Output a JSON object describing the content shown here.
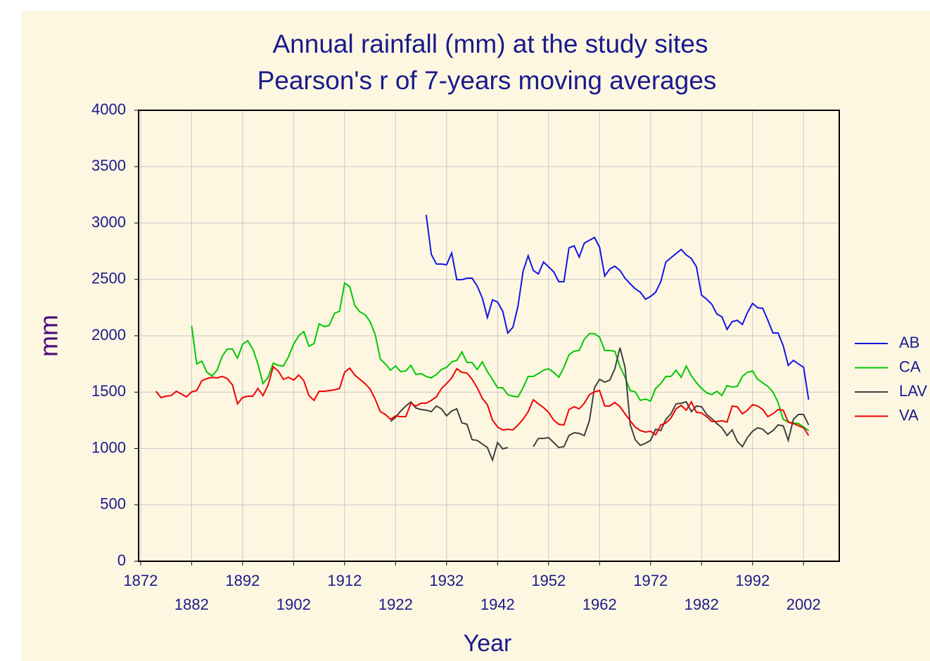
{
  "chart_data": {
    "type": "line",
    "title": "Annual rainfall (mm) at the study sites",
    "subtitle": "Pearson's r of 7-years moving averages",
    "x_label": "Year",
    "y_label": "mm",
    "x": [
      1875,
      1876,
      1877,
      1878,
      1879,
      1880,
      1881,
      1882,
      1883,
      1884,
      1885,
      1886,
      1887,
      1888,
      1889,
      1890,
      1891,
      1892,
      1893,
      1894,
      1895,
      1896,
      1897,
      1898,
      1899,
      1900,
      1901,
      1902,
      1903,
      1904,
      1905,
      1906,
      1907,
      1908,
      1909,
      1910,
      1911,
      1912,
      1913,
      1914,
      1915,
      1916,
      1917,
      1918,
      1919,
      1920,
      1921,
      1922,
      1923,
      1924,
      1925,
      1926,
      1927,
      1928,
      1929,
      1930,
      1931,
      1932,
      1933,
      1934,
      1935,
      1936,
      1937,
      1938,
      1939,
      1940,
      1941,
      1942,
      1943,
      1944,
      1945,
      1946,
      1947,
      1948,
      1949,
      1950,
      1951,
      1952,
      1953,
      1954,
      1955,
      1956,
      1957,
      1958,
      1959,
      1960,
      1961,
      1962,
      1963,
      1964,
      1965,
      1966,
      1967,
      1968,
      1969,
      1970,
      1971,
      1972,
      1973,
      1974,
      1975,
      1976,
      1977,
      1978,
      1979,
      1980,
      1981,
      1982,
      1983,
      1984,
      1985,
      1986,
      1987,
      1988,
      1989,
      1990,
      1991,
      1992,
      1993,
      1994,
      1995,
      1996,
      1997,
      1998,
      1999,
      2000,
      2001,
      2002,
      2003
    ],
    "series": [
      {
        "name": "AB",
        "color": "#1414e6",
        "values": [
          null,
          null,
          null,
          null,
          null,
          null,
          null,
          null,
          null,
          null,
          null,
          null,
          null,
          null,
          null,
          null,
          null,
          null,
          null,
          null,
          null,
          null,
          null,
          null,
          null,
          null,
          null,
          null,
          null,
          null,
          null,
          null,
          null,
          null,
          null,
          null,
          null,
          null,
          null,
          null,
          null,
          null,
          null,
          null,
          null,
          null,
          null,
          null,
          null,
          null,
          null,
          null,
          null,
          3072,
          2723,
          2636,
          2636,
          2629,
          2735,
          2498,
          2498,
          2511,
          2511,
          2442,
          2336,
          2162,
          2318,
          2299,
          2218,
          2025,
          2075,
          2262,
          2573,
          2710,
          2579,
          2548,
          2654,
          2611,
          2567,
          2480,
          2480,
          2779,
          2798,
          2698,
          2822,
          2847,
          2872,
          2785,
          2530,
          2592,
          2617,
          2579,
          2511,
          2461,
          2417,
          2386,
          2324,
          2349,
          2386,
          2480,
          2654,
          2692,
          2729,
          2766,
          2717,
          2685,
          2611,
          2361,
          2324,
          2280,
          2193,
          2168,
          2056,
          2125,
          2137,
          2100,
          2206,
          2287,
          2249,
          2243,
          2137,
          2025,
          2025,
          1913,
          1738,
          1782,
          1750,
          1720,
          1433
        ]
      },
      {
        "name": "CA",
        "color": "#00c800",
        "values": [
          null,
          null,
          null,
          null,
          null,
          null,
          null,
          2087,
          1751,
          1776,
          1676,
          1645,
          1695,
          1819,
          1882,
          1882,
          1801,
          1925,
          1956,
          1882,
          1751,
          1576,
          1632,
          1757,
          1738,
          1732,
          1813,
          1925,
          2000,
          2037,
          1907,
          1931,
          2106,
          2081,
          2093,
          2199,
          2218,
          2467,
          2436,
          2268,
          2212,
          2187,
          2125,
          2012,
          1794,
          1751,
          1695,
          1732,
          1682,
          1688,
          1738,
          1657,
          1664,
          1639,
          1626,
          1657,
          1701,
          1720,
          1769,
          1782,
          1857,
          1763,
          1763,
          1701,
          1769,
          1682,
          1614,
          1539,
          1539,
          1477,
          1464,
          1458,
          1539,
          1639,
          1639,
          1664,
          1695,
          1707,
          1676,
          1632,
          1720,
          1832,
          1863,
          1869,
          1969,
          2019,
          2019,
          1988,
          1869,
          1869,
          1863,
          1726,
          1632,
          1514,
          1502,
          1427,
          1439,
          1421,
          1533,
          1576,
          1639,
          1639,
          1695,
          1632,
          1732,
          1645,
          1583,
          1533,
          1495,
          1477,
          1508,
          1470,
          1558,
          1545,
          1551,
          1639,
          1676,
          1688,
          1614,
          1583,
          1551,
          1502,
          1408,
          1259,
          1234,
          1227,
          1221,
          1190,
          1159
        ]
      },
      {
        "name": "LAV",
        "color": "#404040",
        "values": [
          null,
          null,
          null,
          null,
          null,
          null,
          null,
          null,
          null,
          null,
          null,
          null,
          null,
          null,
          null,
          null,
          null,
          null,
          null,
          null,
          null,
          null,
          null,
          null,
          null,
          null,
          null,
          null,
          null,
          null,
          null,
          null,
          null,
          null,
          null,
          null,
          null,
          null,
          null,
          null,
          null,
          null,
          null,
          null,
          null,
          null,
          1240,
          1277,
          1333,
          1377,
          1414,
          1358,
          1346,
          1340,
          1327,
          1377,
          1352,
          1290,
          1333,
          1352,
          1227,
          1215,
          1078,
          1072,
          1040,
          1009,
          897,
          1053,
          997,
          1009,
          null,
          null,
          null,
          null,
          1016,
          1090,
          1090,
          1097,
          1053,
          1009,
          1016,
          1115,
          1140,
          1134,
          1115,
          1246,
          1539,
          1614,
          1589,
          1607,
          1707,
          1894,
          1720,
          1215,
          1078,
          1028,
          1047,
          1072,
          1171,
          1159,
          1259,
          1308,
          1396,
          1402,
          1414,
          1327,
          1377,
          1371,
          1302,
          1265,
          1221,
          1184,
          1115,
          1165,
          1065,
          1016,
          1097,
          1153,
          1184,
          1171,
          1128,
          1159,
          1209,
          1202,
          1072,
          1259,
          1302,
          1302,
          1209
        ]
      },
      {
        "name": "VA",
        "color": "#f00000",
        "values": [
          1508,
          1452,
          1464,
          1470,
          1508,
          1483,
          1458,
          1502,
          1514,
          1601,
          1620,
          1632,
          1626,
          1639,
          1620,
          1564,
          1396,
          1452,
          1464,
          1464,
          1533,
          1470,
          1564,
          1726,
          1688,
          1614,
          1632,
          1607,
          1651,
          1601,
          1470,
          1427,
          1508,
          1508,
          1514,
          1520,
          1533,
          1676,
          1713,
          1651,
          1614,
          1576,
          1527,
          1439,
          1327,
          1302,
          1259,
          1290,
          1283,
          1283,
          1402,
          1377,
          1402,
          1402,
          1427,
          1458,
          1533,
          1576,
          1626,
          1707,
          1676,
          1670,
          1614,
          1539,
          1445,
          1389,
          1252,
          1190,
          1165,
          1171,
          1165,
          1209,
          1259,
          1327,
          1433,
          1396,
          1364,
          1321,
          1252,
          1215,
          1209,
          1346,
          1371,
          1352,
          1402,
          1477,
          1502,
          1514,
          1377,
          1377,
          1408,
          1371,
          1308,
          1246,
          1190,
          1159,
          1146,
          1153,
          1121,
          1209,
          1227,
          1271,
          1352,
          1383,
          1340,
          1414,
          1321,
          1315,
          1283,
          1240,
          1240,
          1246,
          1234,
          1377,
          1371,
          1308,
          1340,
          1389,
          1377,
          1346,
          1283,
          1308,
          1346,
          1340,
          1234,
          1221,
          1202,
          1184,
          1115
        ]
      }
    ],
    "xlim": [
      1871.6,
      2009
    ],
    "xticks": [
      1872,
      1882,
      1892,
      1902,
      1912,
      1922,
      1932,
      1942,
      1952,
      1962,
      1972,
      1982,
      1992,
      2002
    ],
    "ylim": [
      0,
      4000
    ],
    "yticks": [
      0,
      500,
      1000,
      1500,
      2000,
      2500,
      3000,
      3500,
      4000
    ],
    "grid": true,
    "legend": "right"
  }
}
